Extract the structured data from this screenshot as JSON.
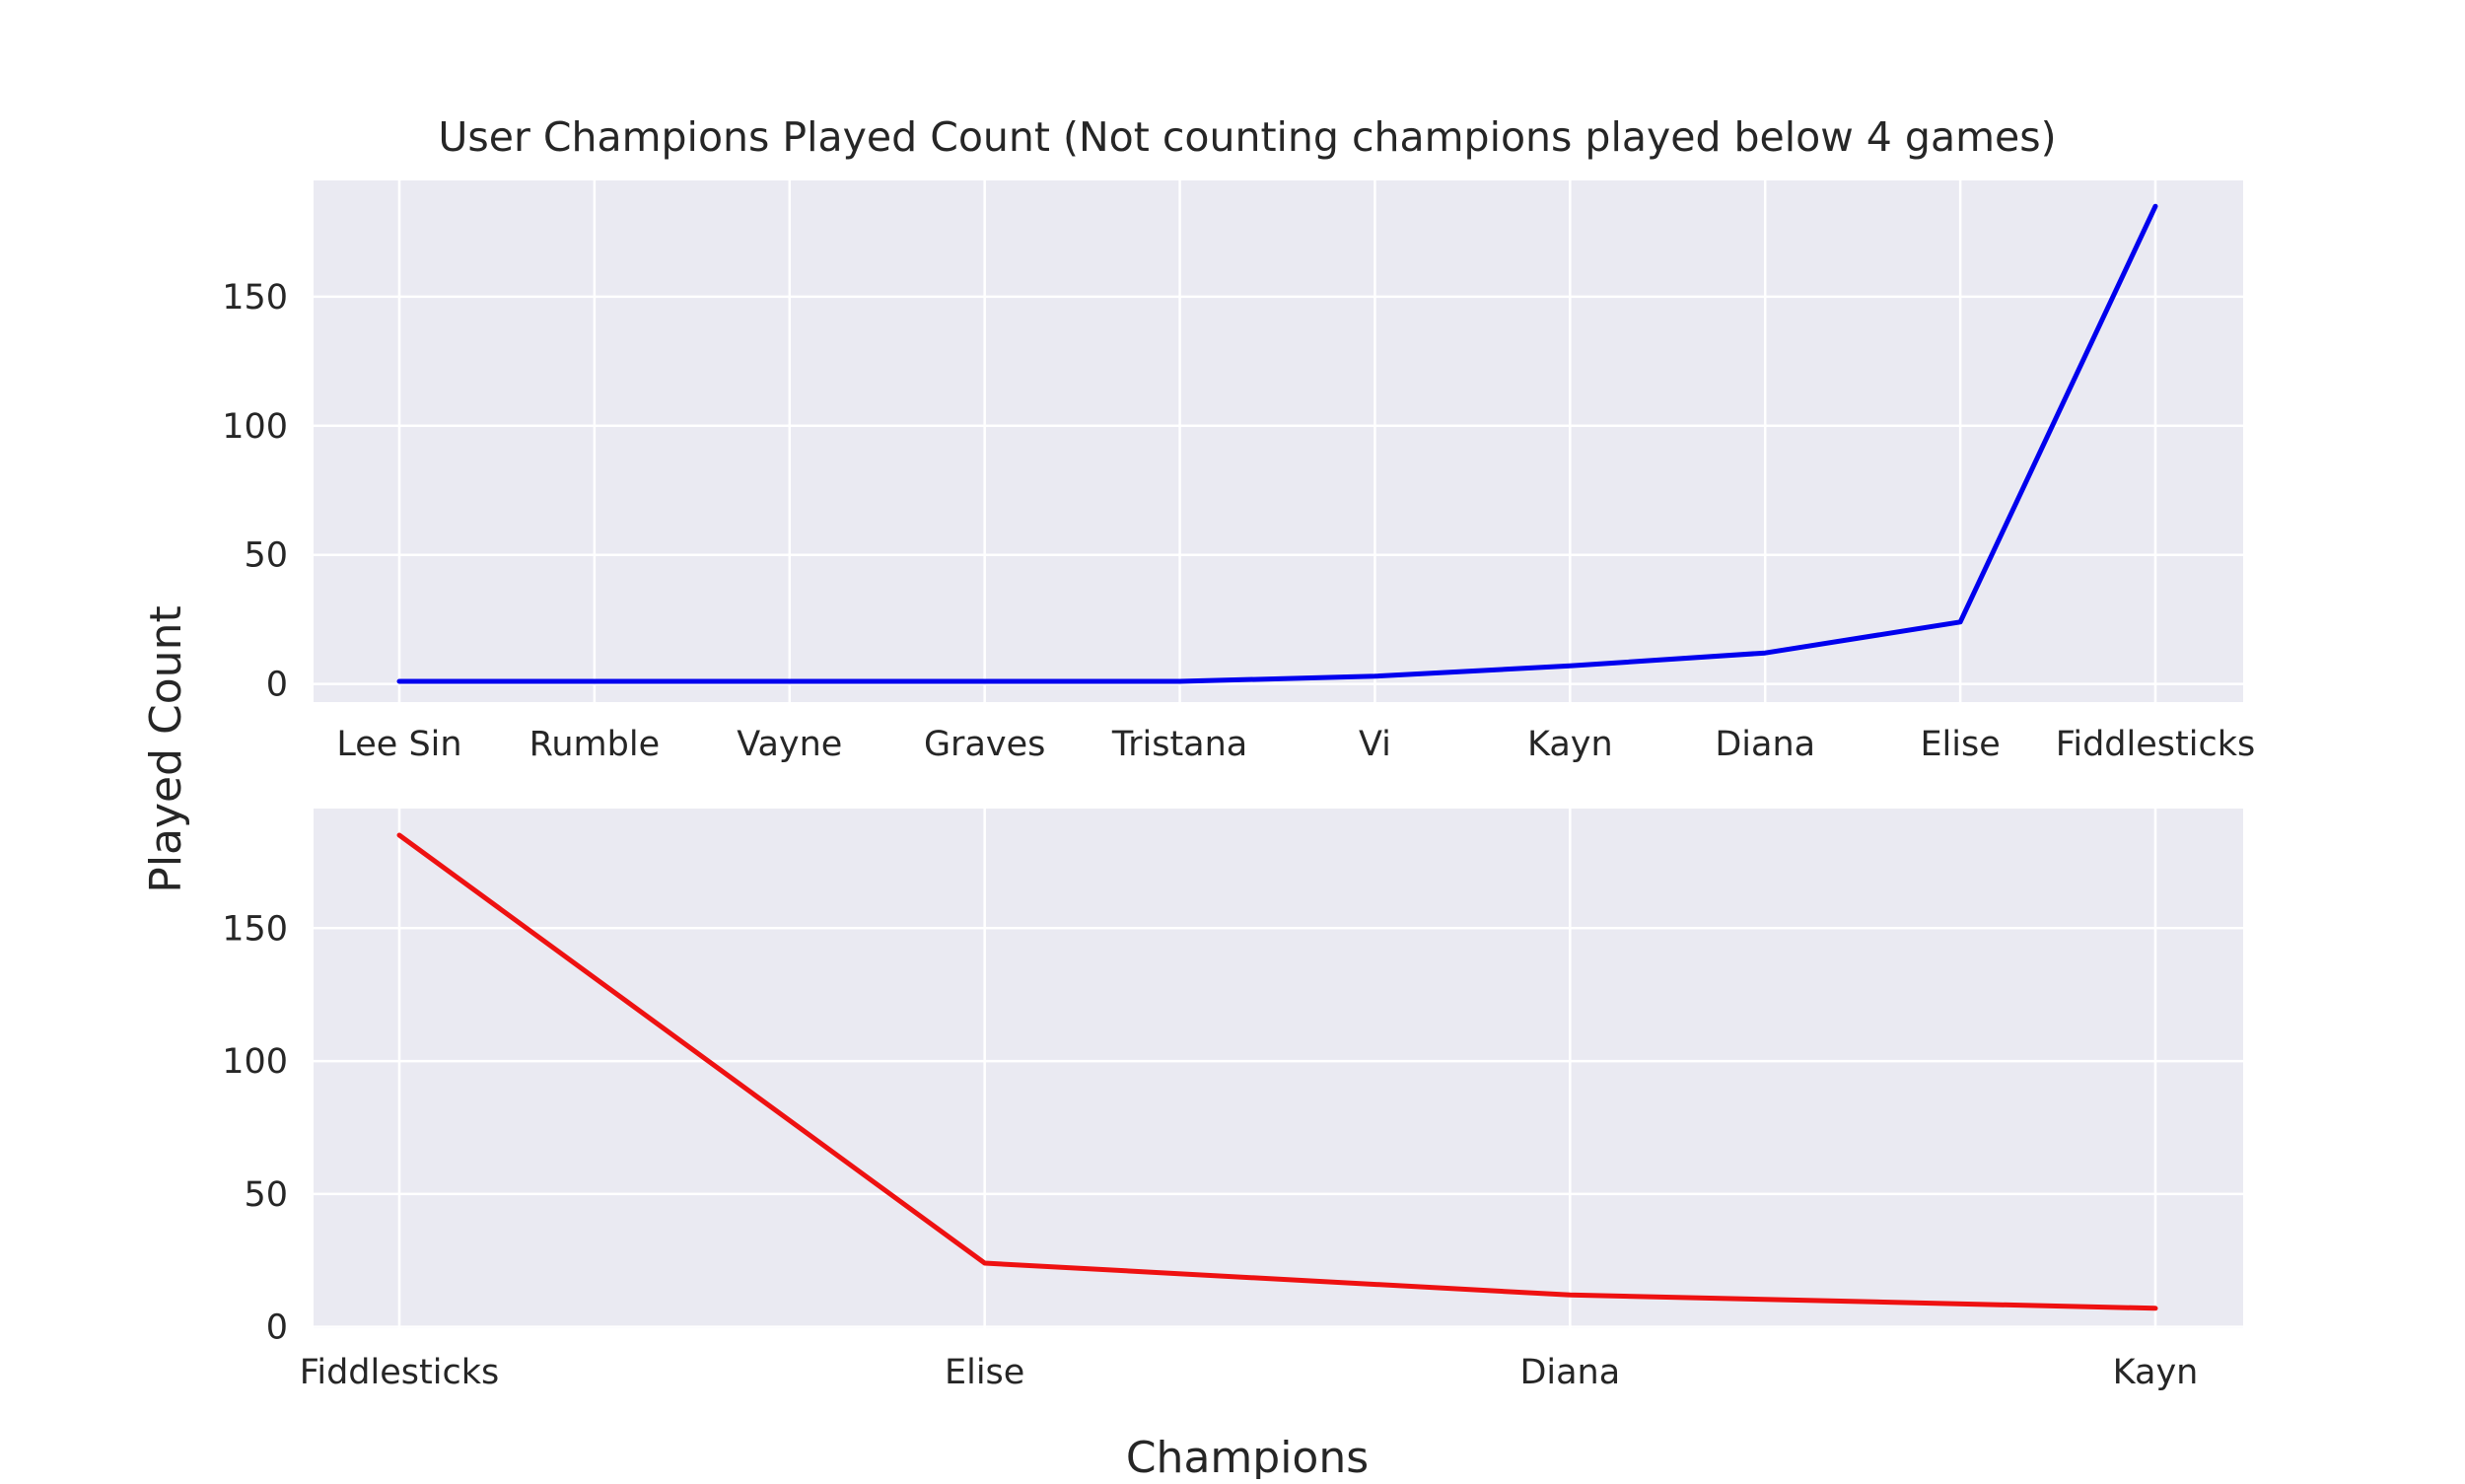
{
  "chart_data": [
    {
      "type": "line",
      "title": "User Champions Played Count (Not counting champions played below 4 games)",
      "categories": [
        "Lee Sin",
        "Rumble",
        "Vayne",
        "Graves",
        "Tristana",
        "Vi",
        "Kayn",
        "Diana",
        "Elise",
        "Fiddlesticks"
      ],
      "values": [
        1,
        1,
        1,
        1,
        1,
        3,
        7,
        12,
        24,
        185
      ],
      "ylim": [
        -7,
        195
      ],
      "yticks": [
        0,
        50,
        100,
        150
      ],
      "line_color": "#0000ee",
      "grid": true
    },
    {
      "type": "line",
      "categories": [
        "Fiddlesticks",
        "Elise",
        "Diana",
        "Kayn"
      ],
      "values": [
        185,
        24,
        12,
        7
      ],
      "ylim": [
        -0.5,
        195
      ],
      "yticks": [
        0,
        50,
        100,
        150
      ],
      "line_color": "#ee1111",
      "grid": true
    }
  ],
  "labels": {
    "ylabel": "Played Count",
    "xlabel": "Champions"
  },
  "colors": {
    "panel_background": "#eaeaf2",
    "grid": "#ffffff",
    "text": "#262626"
  }
}
